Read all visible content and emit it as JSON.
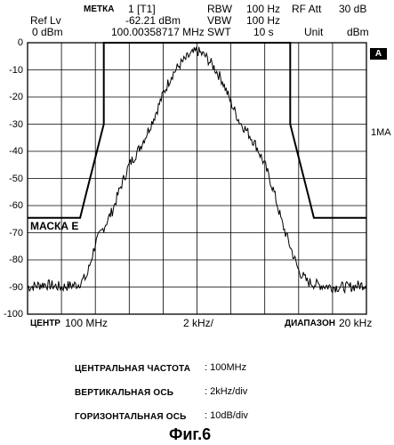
{
  "header": {
    "marker_label": "МЕТКА",
    "marker_value": "1 [T1]",
    "ref_label": "Ref Lv",
    "ref_value": "0 dBm",
    "marker_level": "-62.21 dBm",
    "marker_freq": "100.00358717 MHz",
    "rbw_label": "RBW",
    "rbw_value": "100 Hz",
    "vbw_label": "VBW",
    "vbw_value": "100 Hz",
    "swt_label": "SWT",
    "swt_value": "10 s",
    "rfatt_label": "RF Att",
    "rfatt_value": "30 dB",
    "unit_label": "Unit",
    "unit_value": "dBm"
  },
  "side": {
    "badge": "A",
    "trace_label": "1MA"
  },
  "footer": {
    "center_label": "ЦЕНТР",
    "center_value": "100 MHz",
    "div_value": "2 kHz/",
    "span_label": "ДИАПАЗОН",
    "span_value": "20 kHz"
  },
  "annotations": [
    {
      "label": "ЦЕНТРАЛЬНАЯ ЧАСТОТА",
      "value": ": 100MHz"
    },
    {
      "label": "ВЕРТИКАЛЬНАЯ ОСЬ",
      "value": ": 2kHz/div"
    },
    {
      "label": "ГОРИЗОНТАЛЬНАЯ ОСЬ",
      "value": ": 10dB/div"
    }
  ],
  "figure_caption": "Фиг.6",
  "chart_data": {
    "type": "line",
    "ylim": [
      -100,
      0
    ],
    "xlim": [
      -10,
      10
    ],
    "x_unit": "kHz offset from center",
    "y_ticks": [
      "0",
      "-10",
      "-20",
      "-30",
      "-40",
      "-50",
      "-60",
      "-70",
      "-80",
      "-90",
      "-100"
    ],
    "grid": true,
    "mask_label": "МАСКА E",
    "mask": {
      "x": [
        -10,
        -6.9,
        -6.6,
        -5.5,
        -5.5,
        5.5,
        5.5,
        6.6,
        6.9,
        10
      ],
      "y": [
        -64.5,
        -64.5,
        -57,
        -30,
        0,
        0,
        -30,
        -57,
        -64.5,
        -64.5
      ]
    },
    "series": [
      {
        "x": [
          -10,
          -9,
          -8,
          -7,
          -6.5,
          -6,
          -5.5,
          -5,
          -4.5,
          -4,
          -3.5,
          -3,
          -2.5,
          -2,
          -1.5,
          -1,
          -0.5,
          0,
          0.5,
          1,
          1.5,
          2,
          2.5,
          3,
          3.5,
          4,
          4.5,
          5,
          5.5,
          6,
          6.5,
          7,
          8,
          9,
          10
        ],
        "y": [
          -90,
          -89,
          -90,
          -89,
          -86,
          -74,
          -68,
          -62,
          -53,
          -45,
          -40,
          -34,
          -27,
          -19,
          -12,
          -8,
          -5,
          -3,
          -5,
          -9,
          -14,
          -22,
          -29,
          -33,
          -38,
          -45,
          -54,
          -66,
          -75,
          -84,
          -88,
          -89,
          -90,
          -90,
          -89
        ]
      }
    ]
  }
}
